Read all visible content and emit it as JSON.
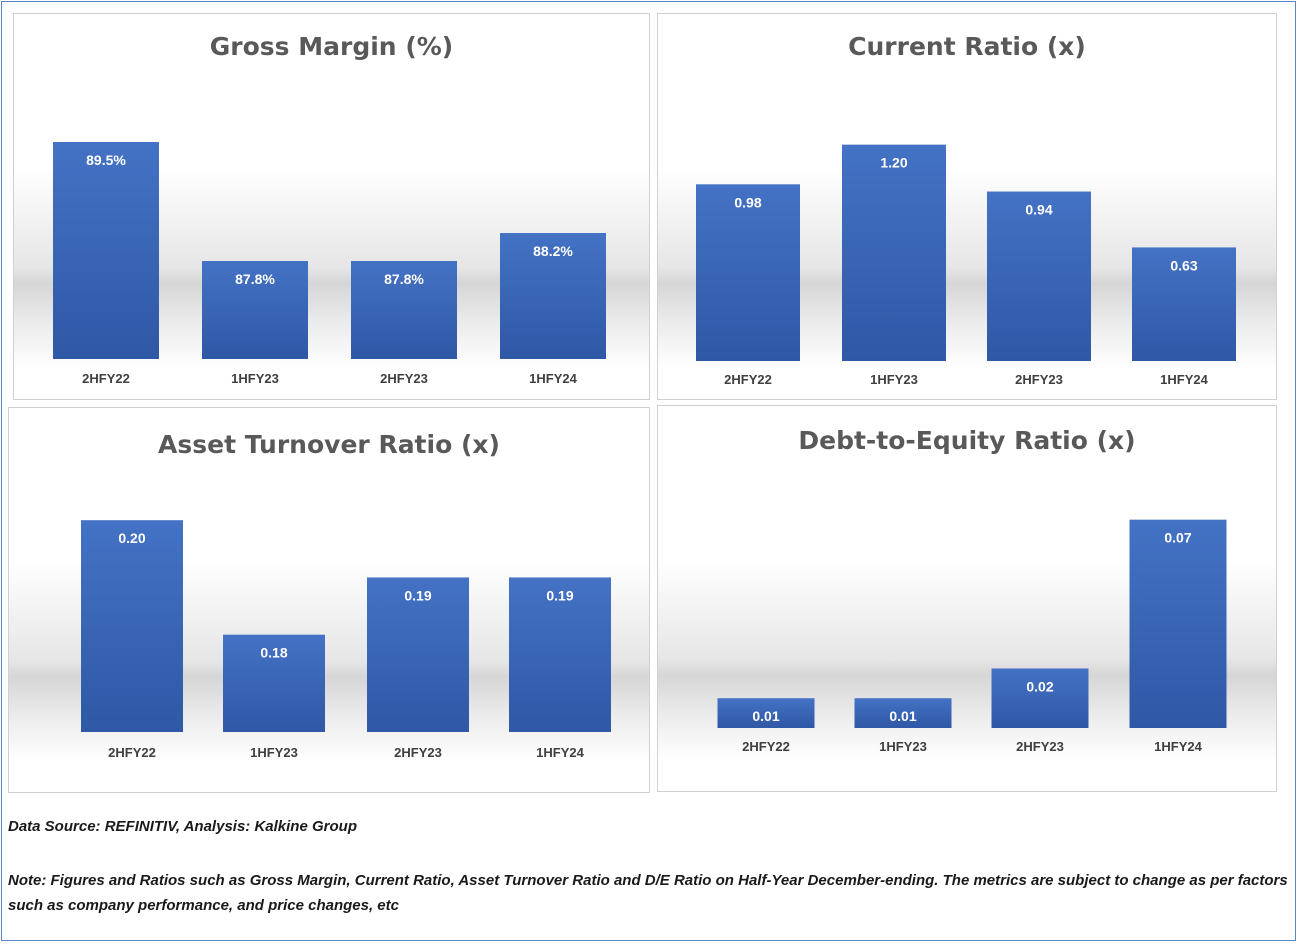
{
  "colors": {
    "bar": "#4472c4",
    "bar_dark": "#2f58a6",
    "label": "#ffffff",
    "tick": "#404040",
    "title": "#595959"
  },
  "chart_data": [
    {
      "type": "bar",
      "title": "Gross Margin (%)",
      "categories": [
        "2HFY22",
        "1HFY23",
        "2HFY23",
        "1HFY24"
      ],
      "values": [
        89.5,
        87.8,
        87.8,
        88.2
      ],
      "labels": [
        "89.5%",
        "87.8%",
        "87.8%",
        "88.2%"
      ],
      "ylim": [
        86.4,
        89.9
      ],
      "grid": false
    },
    {
      "type": "bar",
      "title": "Current Ratio (x)",
      "categories": [
        "2HFY22",
        "1HFY23",
        "2HFY23",
        "1HFY24"
      ],
      "values": [
        0.98,
        1.2,
        0.94,
        0.63
      ],
      "labels": [
        "0.98",
        "1.20",
        "0.94",
        "0.63"
      ],
      "ylim": [
        0,
        1.37
      ],
      "grid": false
    },
    {
      "type": "bar",
      "title": "Asset Turnover Ratio (x)",
      "categories": [
        "2HFY22",
        "1HFY23",
        "2HFY23",
        "1HFY24"
      ],
      "values": [
        0.2,
        0.18,
        0.19,
        0.19
      ],
      "labels": [
        "0.20",
        "0.18",
        "0.19",
        "0.19"
      ],
      "ylim": [
        0.163,
        0.2065
      ],
      "grid": false
    },
    {
      "type": "bar",
      "title": "Debt-to-Equity Ratio (x)",
      "categories": [
        "2HFY22",
        "1HFY23",
        "2HFY23",
        "1HFY24"
      ],
      "values": [
        0.01,
        0.01,
        0.02,
        0.07
      ],
      "labels": [
        "0.01",
        "0.01",
        "0.02",
        "0.07"
      ],
      "ylim": [
        0,
        0.084
      ],
      "grid": false
    }
  ],
  "footer": {
    "source": "Data Source: REFINITIV, Analysis: Kalkine Group",
    "note": "Note: Figures and Ratios such as Gross Margin, Current Ratio, Asset Turnover Ratio and D/E Ratio on Half-Year December-ending. The metrics are subject to change as per factors such as company performance, and price changes, etc"
  }
}
